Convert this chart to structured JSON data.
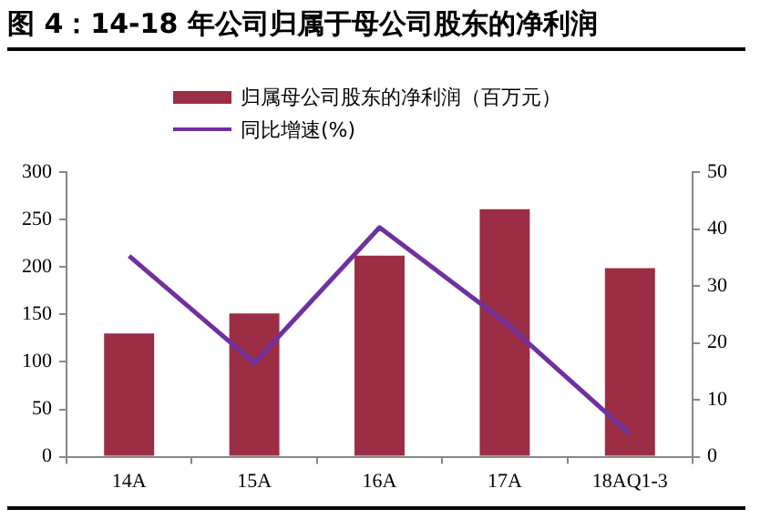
{
  "chart_data": {
    "type": "bar",
    "title": "图 4：14-18 年公司归属于母公司股东的净利润",
    "categories": [
      "14A",
      "15A",
      "16A",
      "17A",
      "18AQ1-3"
    ],
    "series": [
      {
        "name": "归属母公司股东的净利润（百万元）",
        "color": "#9b2d45",
        "values": [
          130,
          151,
          212,
          261,
          199
        ]
      },
      {
        "name": "同比增速(%)",
        "type": "line",
        "axis": "y2",
        "color": "#7030a0",
        "values": [
          35.3,
          16.5,
          40.3,
          23.7,
          4.0
        ]
      }
    ],
    "ylim": [
      0,
      300
    ],
    "yticks": [
      0,
      50,
      100,
      150,
      200,
      250,
      300
    ],
    "y2lim": [
      0,
      50
    ],
    "y2ticks": [
      0,
      10,
      20,
      30,
      40,
      50
    ],
    "grid": false,
    "legend": "top",
    "marker": "none"
  }
}
